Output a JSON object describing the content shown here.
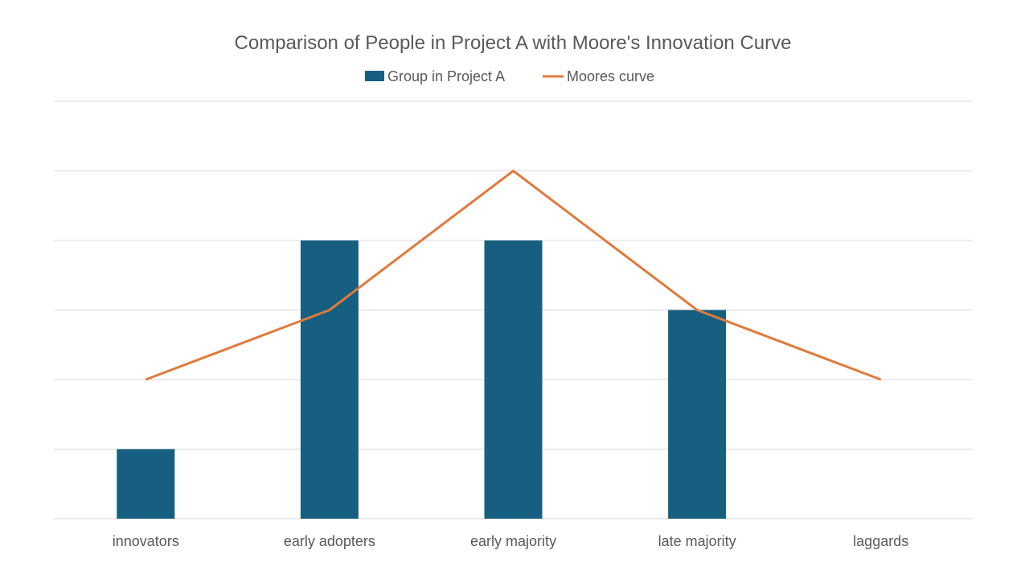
{
  "chart_data": {
    "type": "bar",
    "title": "Comparison of People in Project A with Moore's Innovation Curve",
    "categories": [
      "innovators",
      "early adopters",
      "early majority",
      "late majority",
      "laggards"
    ],
    "series": [
      {
        "name": "Group in Project A",
        "type": "bar",
        "values": [
          1,
          4,
          4,
          3,
          0
        ],
        "color": "#175f80"
      },
      {
        "name": "Moores curve",
        "type": "line",
        "values": [
          2,
          3,
          5,
          3,
          2
        ],
        "color": "#e07a3c"
      }
    ],
    "ylim": [
      0,
      6
    ],
    "grid": true,
    "legend_position": "top",
    "xlabel": "",
    "ylabel": ""
  }
}
